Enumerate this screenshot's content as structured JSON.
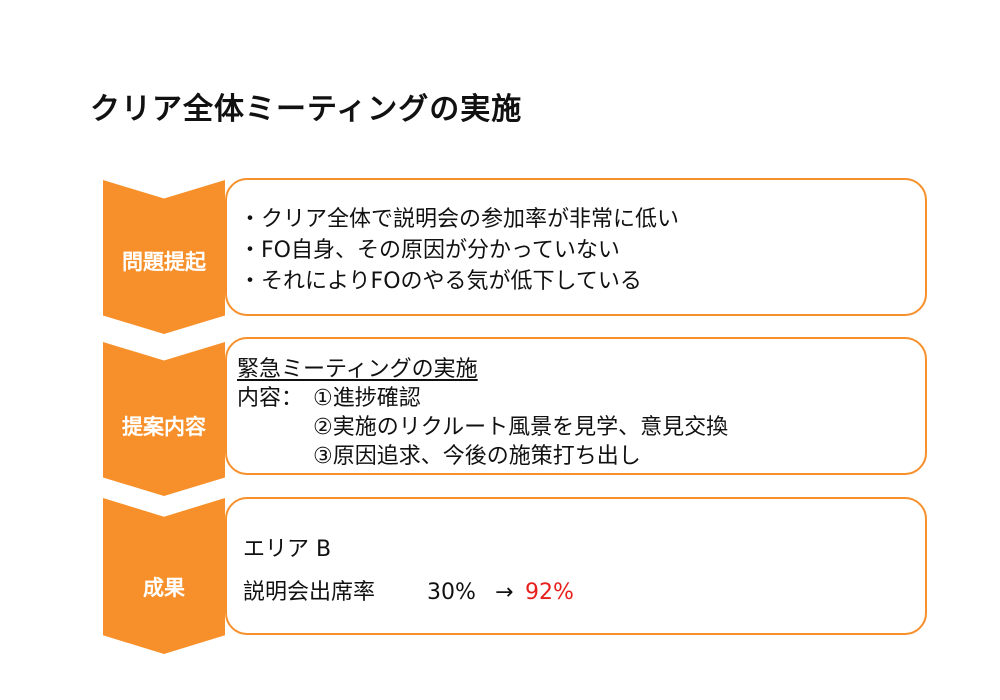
{
  "slide": {
    "title": "クリア全体ミーティングの実施"
  },
  "sections": [
    {
      "label": "問題提起",
      "lines": [
        "・クリア全体で説明会の参加率が非常に低い",
        "・FO自身、その原因が分かっていない",
        "・それによりFOのやる気が低下している"
      ]
    },
    {
      "label": "提案内容",
      "heading": "緊急ミーティングの実施",
      "content_label": "内容：",
      "items": [
        "①進捗確認",
        "②実施のリクルート風景を見学、意見交換",
        "③原因追求、今後の施策打ち出し"
      ]
    },
    {
      "label": "成果",
      "area": "エリア B",
      "metric_label": "説明会出席率",
      "before": "30%",
      "arrow": "→",
      "after": "92%"
    }
  ],
  "colors": {
    "accent": "#f7902a",
    "highlight": "#e8201c"
  }
}
